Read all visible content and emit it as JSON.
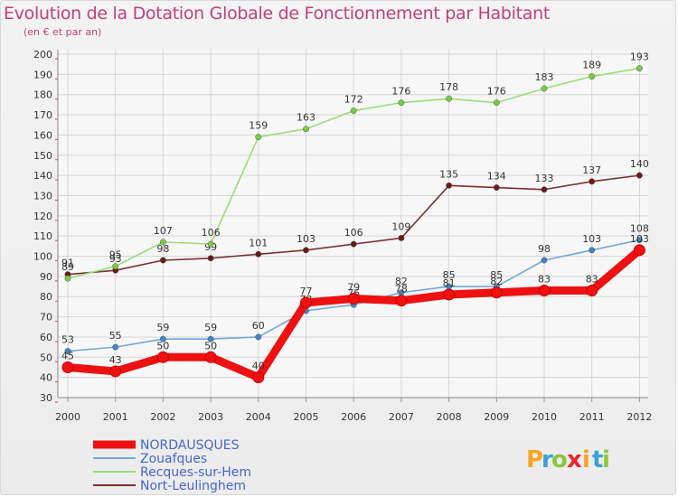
{
  "header": {
    "title": "Evolution de la Dotation Globale de Fonctionnement par Habitant",
    "subtitle": "(en € et par an)"
  },
  "logo": {
    "letters": [
      "P",
      "r",
      "o",
      "x",
      "i",
      "t",
      "i"
    ],
    "colors": [
      "#f5a623",
      "#3aa0d8",
      "#8cc63f",
      "#e8262b",
      "#f5a623",
      "#3aa0d8",
      "#8cc63f"
    ]
  },
  "chart_data": {
    "type": "line",
    "title": "Evolution de la Dotation Globale de Fonctionnement par Habitant",
    "subtitle": "(en € et par an)",
    "xlabel": "",
    "ylabel": "",
    "ylim": [
      30,
      200
    ],
    "yticks": [
      30,
      40,
      50,
      60,
      70,
      80,
      90,
      100,
      110,
      120,
      130,
      140,
      150,
      160,
      170,
      180,
      190,
      200
    ],
    "categories": [
      "2000",
      "2001",
      "2002",
      "2003",
      "2004",
      "2005",
      "2006",
      "2007",
      "2008",
      "2009",
      "2010",
      "2011",
      "2012"
    ],
    "grid": true,
    "legend_position": "bottom-left",
    "series": [
      {
        "name": "NORDAUSQUES",
        "color": "#ee1111",
        "marker_color": "#ee1111",
        "thick": true,
        "values": [
          45,
          43,
          50,
          50,
          40,
          77,
          79,
          78,
          81,
          82,
          83,
          83,
          103
        ]
      },
      {
        "name": "Zouafques",
        "color": "#74a7d6",
        "marker_color": "#3f86c8",
        "thick": false,
        "values": [
          53,
          55,
          59,
          59,
          60,
          73,
          76,
          82,
          85,
          85,
          98,
          103,
          108
        ]
      },
      {
        "name": "Recques-sur-Hem",
        "color": "#99dd77",
        "marker_color": "#77cc44",
        "thick": false,
        "values": [
          89,
          95,
          107,
          106,
          159,
          163,
          172,
          176,
          178,
          176,
          183,
          189,
          193
        ]
      },
      {
        "name": "Nort-Leulinghem",
        "color": "#7a3030",
        "marker_color": "#6a1a1a",
        "thick": false,
        "values": [
          91,
          93,
          98,
          99,
          101,
          103,
          106,
          109,
          135,
          134,
          133,
          137,
          140
        ]
      }
    ]
  }
}
